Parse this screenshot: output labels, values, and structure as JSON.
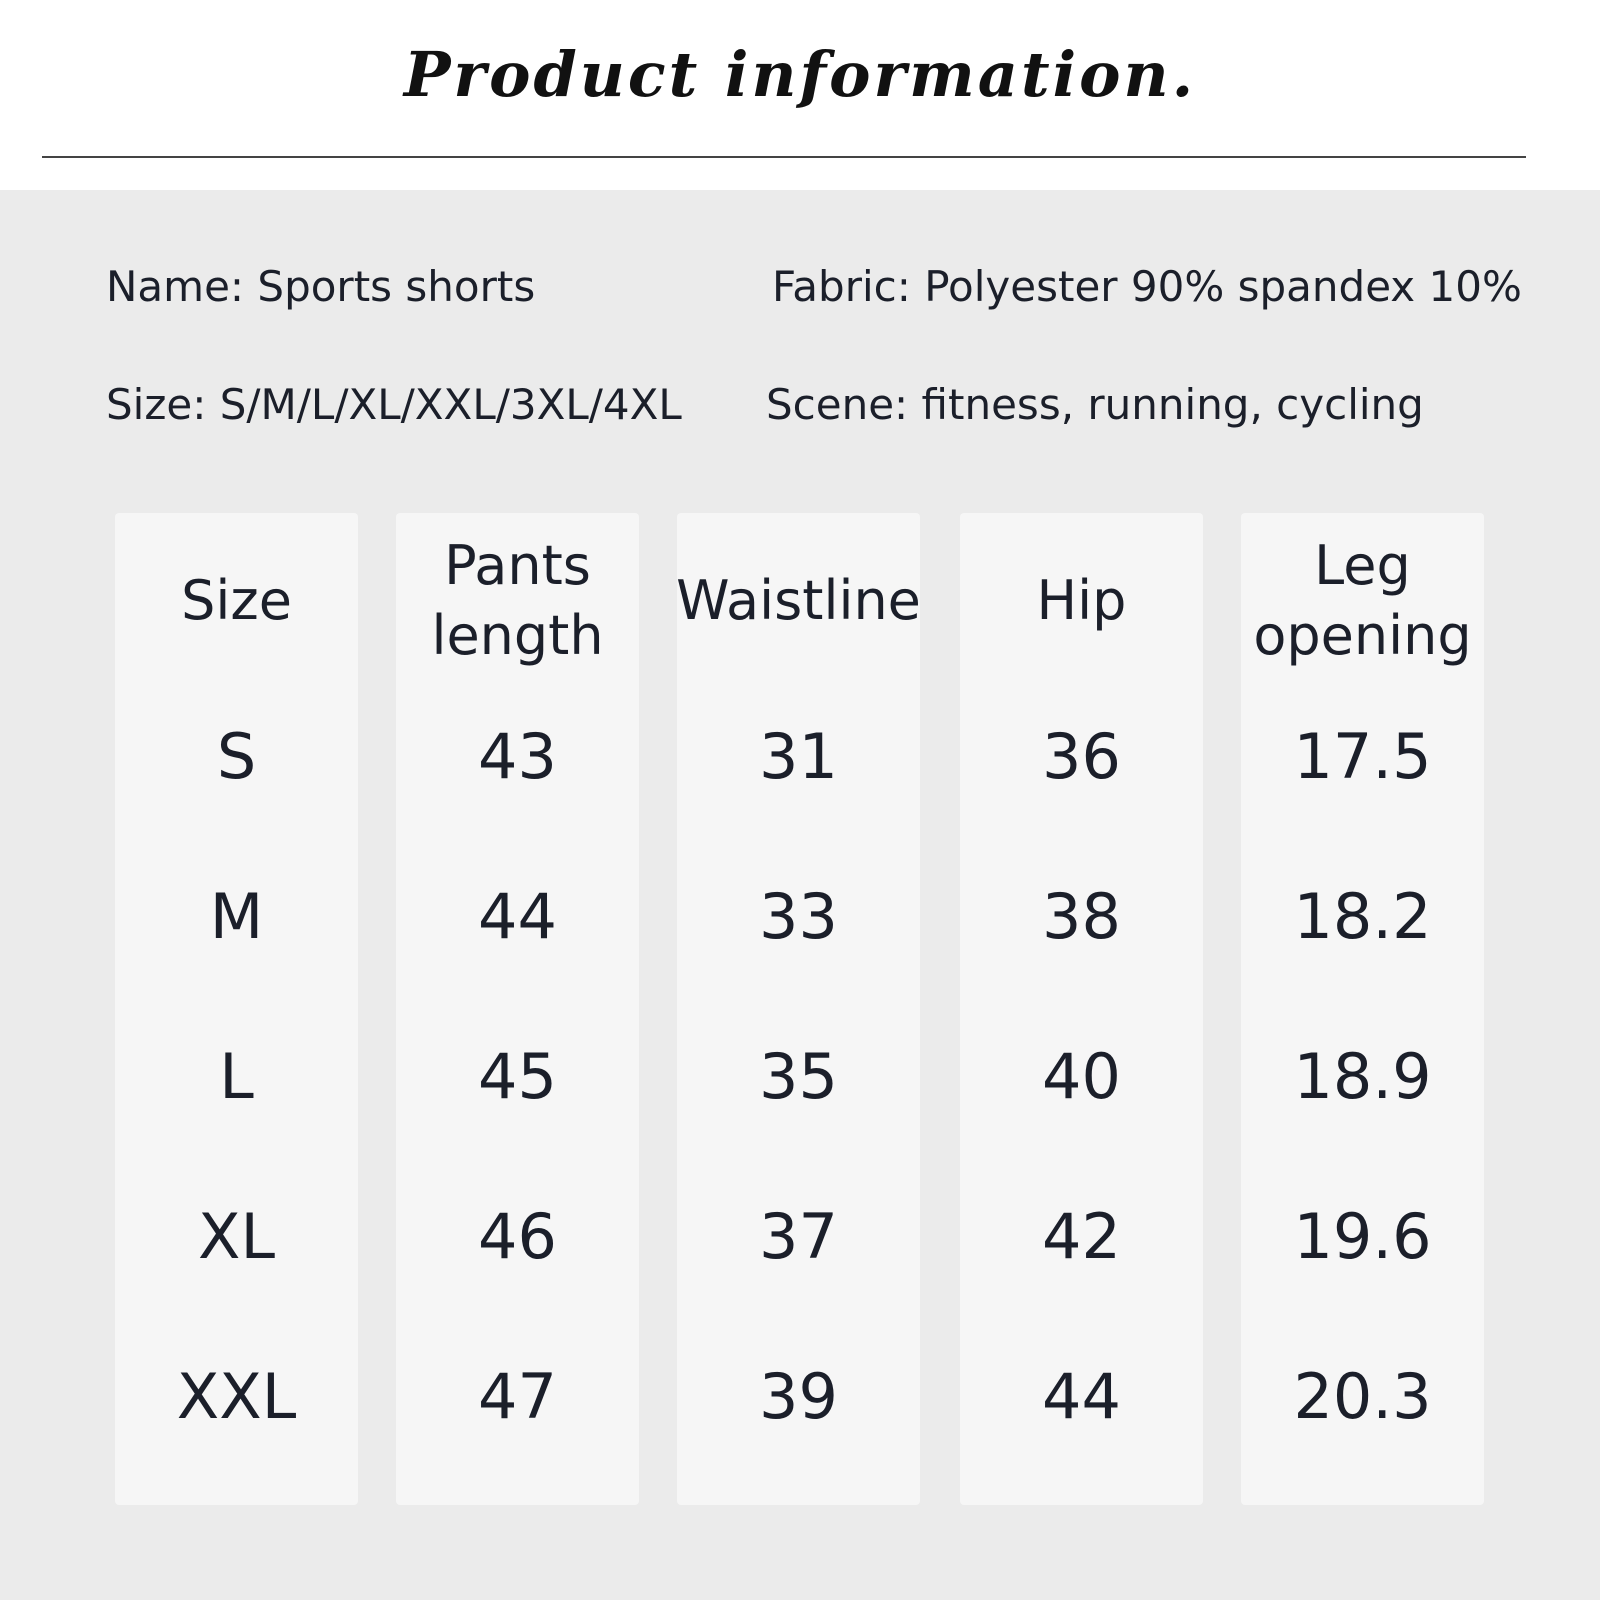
{
  "title": "Product information.",
  "info": {
    "name": "Name: Sports shorts",
    "fabric": "Fabric: Polyester 90% spandex 10%",
    "size": "Size: S/M/L/XL/XXL/3XL/4XL",
    "scene": "Scene: fitness, running, cycling"
  },
  "table": {
    "columns": [
      {
        "header": "Size",
        "values": [
          "S",
          "M",
          "L",
          "XL",
          "XXL"
        ]
      },
      {
        "header": "Pants\nlength",
        "values": [
          "43",
          "44",
          "45",
          "46",
          "47"
        ]
      },
      {
        "header": "Waistline",
        "values": [
          "31",
          "33",
          "35",
          "37",
          "39"
        ]
      },
      {
        "header": "Hip",
        "values": [
          "36",
          "38",
          "40",
          "42",
          "44"
        ]
      },
      {
        "header": "Leg\nopening",
        "values": [
          "17.5",
          "18.2",
          "18.9",
          "19.6",
          "20.3"
        ]
      }
    ]
  }
}
